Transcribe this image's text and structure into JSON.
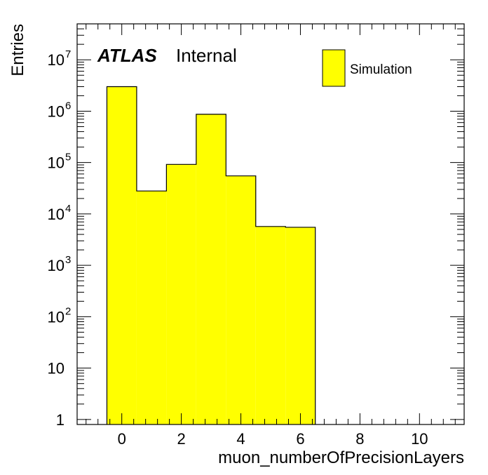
{
  "chart_data": {
    "type": "bar",
    "histogram": true,
    "xlabel": "muon_numberOfPrecisionLayers",
    "ylabel": "Entries",
    "xlim": [
      -1.5,
      11.5
    ],
    "ylim": [
      0.8,
      50000000
    ],
    "yscale": "log",
    "bin_edges": [
      -0.5,
      0.5,
      1.5,
      2.5,
      3.5,
      4.5,
      5.5,
      6.5
    ],
    "values": [
      3000000,
      28000,
      92000,
      870000,
      55000,
      5700,
      5500
    ],
    "x_ticks": [
      0,
      2,
      4,
      6,
      8,
      10
    ],
    "x_tick_labels": [
      "0",
      "2",
      "4",
      "6",
      "8",
      "10"
    ],
    "y_ticks": [
      {
        "value": 1,
        "base": "1",
        "exp": ""
      },
      {
        "value": 10,
        "base": "10",
        "exp": ""
      },
      {
        "value": 100,
        "base": "10",
        "exp": "2"
      },
      {
        "value": 1000,
        "base": "10",
        "exp": "3"
      },
      {
        "value": 10000,
        "base": "10",
        "exp": "4"
      },
      {
        "value": 100000,
        "base": "10",
        "exp": "5"
      },
      {
        "value": 1000000,
        "base": "10",
        "exp": "6"
      },
      {
        "value": 10000000,
        "base": "10",
        "exp": "7"
      }
    ],
    "series": [
      {
        "name": "Simulation",
        "color": "#ffff00"
      }
    ],
    "legend_position": "top-right",
    "grid": false
  },
  "labels": {
    "atlas": "ATLAS",
    "internal": "Internal"
  }
}
